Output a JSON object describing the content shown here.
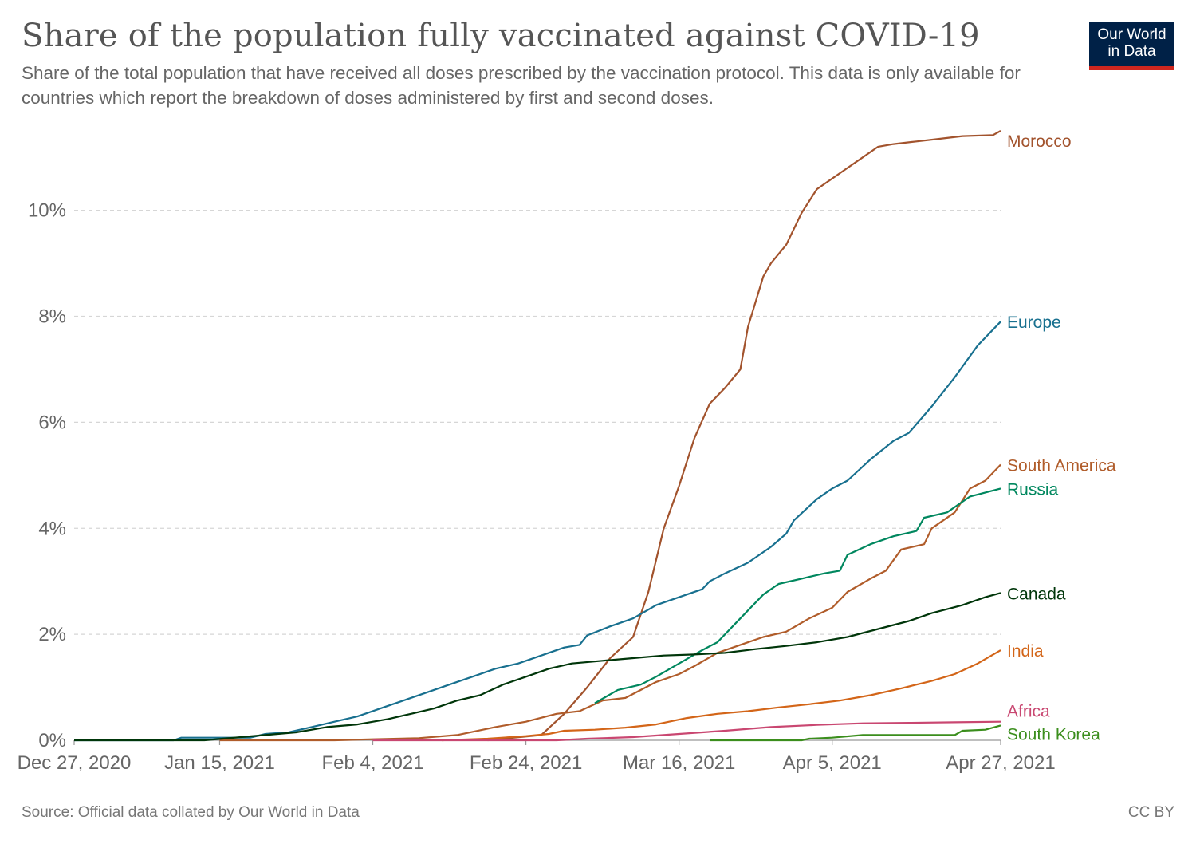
{
  "brand": {
    "line1": "Our World",
    "line2": "in Data",
    "bg_color": "#002147",
    "accent_color": "#ce261e"
  },
  "footer": {
    "source": "Source: Official data collated by Our World in Data",
    "license": "CC BY"
  },
  "chart_data": {
    "type": "line",
    "title": "Share of the population fully vaccinated against COVID-19",
    "subtitle": "Share of the total population that have received all doses prescribed by the vaccination protocol. This data is only available for countries which report the breakdown of doses administered by first and second doses.",
    "xlabel": "",
    "ylabel": "",
    "x_range": [
      "2020-12-27",
      "2021-04-27"
    ],
    "ylim": [
      0,
      11.5
    ],
    "y_unit": "%",
    "y_ticks": [
      0,
      2,
      4,
      6,
      8,
      10
    ],
    "y_tick_labels": [
      "0%",
      "2%",
      "4%",
      "6%",
      "8%",
      "10%"
    ],
    "x_ticks": [
      "2020-12-27",
      "2021-01-15",
      "2021-02-04",
      "2021-02-24",
      "2021-03-16",
      "2021-04-05",
      "2021-04-27"
    ],
    "x_tick_labels": [
      "Dec 27, 2020",
      "Jan 15, 2021",
      "Feb 4, 2021",
      "Feb 24, 2021",
      "Mar 16, 2021",
      "Apr 5, 2021",
      "Apr 27, 2021"
    ],
    "grid": "horizontal dashed",
    "legend": "inline labels at line ends (right)",
    "series": [
      {
        "name": "Morocco",
        "color": "#a2532d",
        "points": [
          [
            "2021-02-19",
            0.0
          ],
          [
            "2021-02-26",
            0.1
          ],
          [
            "2021-03-01",
            0.5
          ],
          [
            "2021-03-04",
            1.0
          ],
          [
            "2021-03-07",
            1.55
          ],
          [
            "2021-03-10",
            1.95
          ],
          [
            "2021-03-12",
            2.8
          ],
          [
            "2021-03-14",
            4.0
          ],
          [
            "2021-03-16",
            4.8
          ],
          [
            "2021-03-18",
            5.7
          ],
          [
            "2021-03-20",
            6.35
          ],
          [
            "2021-03-22",
            6.65
          ],
          [
            "2021-03-24",
            7.0
          ],
          [
            "2021-03-25",
            7.8
          ],
          [
            "2021-03-27",
            8.75
          ],
          [
            "2021-03-28",
            9.0
          ],
          [
            "2021-03-30",
            9.35
          ],
          [
            "2021-04-01",
            9.95
          ],
          [
            "2021-04-03",
            10.4
          ],
          [
            "2021-04-05",
            10.6
          ],
          [
            "2021-04-07",
            10.8
          ],
          [
            "2021-04-09",
            11.0
          ],
          [
            "2021-04-11",
            11.2
          ],
          [
            "2021-04-13",
            11.25
          ],
          [
            "2021-04-16",
            11.3
          ],
          [
            "2021-04-19",
            11.35
          ],
          [
            "2021-04-22",
            11.4
          ],
          [
            "2021-04-26",
            11.42
          ],
          [
            "2021-04-27",
            11.5
          ]
        ]
      },
      {
        "name": "Europe",
        "color": "#18708f",
        "points": [
          [
            "2020-12-27",
            0.0
          ],
          [
            "2021-01-09",
            0.0
          ],
          [
            "2021-01-10",
            0.05
          ],
          [
            "2021-01-19",
            0.05
          ],
          [
            "2021-01-21",
            0.12
          ],
          [
            "2021-01-24",
            0.15
          ],
          [
            "2021-01-27",
            0.25
          ],
          [
            "2021-01-30",
            0.35
          ],
          [
            "2021-02-02",
            0.45
          ],
          [
            "2021-02-05",
            0.6
          ],
          [
            "2021-02-08",
            0.75
          ],
          [
            "2021-02-11",
            0.9
          ],
          [
            "2021-02-14",
            1.05
          ],
          [
            "2021-02-17",
            1.2
          ],
          [
            "2021-02-20",
            1.35
          ],
          [
            "2021-02-23",
            1.45
          ],
          [
            "2021-02-26",
            1.6
          ],
          [
            "2021-03-01",
            1.75
          ],
          [
            "2021-03-03",
            1.8
          ],
          [
            "2021-03-04",
            1.98
          ],
          [
            "2021-03-07",
            2.15
          ],
          [
            "2021-03-10",
            2.3
          ],
          [
            "2021-03-13",
            2.55
          ],
          [
            "2021-03-16",
            2.7
          ],
          [
            "2021-03-19",
            2.85
          ],
          [
            "2021-03-20",
            3.0
          ],
          [
            "2021-03-22",
            3.15
          ],
          [
            "2021-03-25",
            3.35
          ],
          [
            "2021-03-28",
            3.65
          ],
          [
            "2021-03-30",
            3.9
          ],
          [
            "2021-03-31",
            4.15
          ],
          [
            "2021-04-03",
            4.55
          ],
          [
            "2021-04-05",
            4.75
          ],
          [
            "2021-04-07",
            4.9
          ],
          [
            "2021-04-10",
            5.3
          ],
          [
            "2021-04-13",
            5.65
          ],
          [
            "2021-04-15",
            5.8
          ],
          [
            "2021-04-18",
            6.3
          ],
          [
            "2021-04-21",
            6.85
          ],
          [
            "2021-04-24",
            7.45
          ],
          [
            "2021-04-27",
            7.9
          ]
        ]
      },
      {
        "name": "South America",
        "color": "#b05c2a",
        "points": [
          [
            "2021-01-15",
            0.0
          ],
          [
            "2021-01-30",
            0.0
          ],
          [
            "2021-02-04",
            0.02
          ],
          [
            "2021-02-10",
            0.04
          ],
          [
            "2021-02-15",
            0.1
          ],
          [
            "2021-02-20",
            0.25
          ],
          [
            "2021-02-24",
            0.35
          ],
          [
            "2021-02-28",
            0.5
          ],
          [
            "2021-03-03",
            0.55
          ],
          [
            "2021-03-06",
            0.75
          ],
          [
            "2021-03-09",
            0.8
          ],
          [
            "2021-03-13",
            1.1
          ],
          [
            "2021-03-16",
            1.25
          ],
          [
            "2021-03-18",
            1.4
          ],
          [
            "2021-03-21",
            1.65
          ],
          [
            "2021-03-24",
            1.8
          ],
          [
            "2021-03-27",
            1.95
          ],
          [
            "2021-03-30",
            2.05
          ],
          [
            "2021-04-02",
            2.3
          ],
          [
            "2021-04-05",
            2.5
          ],
          [
            "2021-04-07",
            2.8
          ],
          [
            "2021-04-10",
            3.05
          ],
          [
            "2021-04-12",
            3.2
          ],
          [
            "2021-04-14",
            3.6
          ],
          [
            "2021-04-17",
            3.7
          ],
          [
            "2021-04-18",
            4.0
          ],
          [
            "2021-04-21",
            4.3
          ],
          [
            "2021-04-23",
            4.75
          ],
          [
            "2021-04-25",
            4.9
          ],
          [
            "2021-04-27",
            5.2
          ]
        ]
      },
      {
        "name": "Russia",
        "color": "#00875e",
        "points": [
          [
            "2021-03-05",
            0.7
          ],
          [
            "2021-03-08",
            0.95
          ],
          [
            "2021-03-11",
            1.05
          ],
          [
            "2021-03-13",
            1.2
          ],
          [
            "2021-03-16",
            1.45
          ],
          [
            "2021-03-19",
            1.7
          ],
          [
            "2021-03-21",
            1.85
          ],
          [
            "2021-03-24",
            2.3
          ],
          [
            "2021-03-27",
            2.75
          ],
          [
            "2021-03-29",
            2.95
          ],
          [
            "2021-04-01",
            3.05
          ],
          [
            "2021-04-04",
            3.15
          ],
          [
            "2021-04-06",
            3.2
          ],
          [
            "2021-04-07",
            3.5
          ],
          [
            "2021-04-10",
            3.7
          ],
          [
            "2021-04-13",
            3.85
          ],
          [
            "2021-04-16",
            3.95
          ],
          [
            "2021-04-17",
            4.2
          ],
          [
            "2021-04-20",
            4.3
          ],
          [
            "2021-04-23",
            4.6
          ],
          [
            "2021-04-27",
            4.75
          ]
        ]
      },
      {
        "name": "Canada",
        "color": "#00360a",
        "points": [
          [
            "2020-12-27",
            0.0
          ],
          [
            "2021-01-13",
            0.0
          ],
          [
            "2021-01-25",
            0.15
          ],
          [
            "2021-01-29",
            0.25
          ],
          [
            "2021-02-02",
            0.3
          ],
          [
            "2021-02-06",
            0.4
          ],
          [
            "2021-02-09",
            0.5
          ],
          [
            "2021-02-12",
            0.6
          ],
          [
            "2021-02-15",
            0.75
          ],
          [
            "2021-02-18",
            0.85
          ],
          [
            "2021-02-21",
            1.05
          ],
          [
            "2021-02-24",
            1.2
          ],
          [
            "2021-02-27",
            1.35
          ],
          [
            "2021-03-02",
            1.45
          ],
          [
            "2021-03-06",
            1.5
          ],
          [
            "2021-03-10",
            1.55
          ],
          [
            "2021-03-14",
            1.6
          ],
          [
            "2021-03-18",
            1.62
          ],
          [
            "2021-03-22",
            1.65
          ],
          [
            "2021-03-26",
            1.72
          ],
          [
            "2021-03-30",
            1.78
          ],
          [
            "2021-04-03",
            1.85
          ],
          [
            "2021-04-07",
            1.95
          ],
          [
            "2021-04-11",
            2.1
          ],
          [
            "2021-04-15",
            2.25
          ],
          [
            "2021-04-18",
            2.4
          ],
          [
            "2021-04-22",
            2.55
          ],
          [
            "2021-04-25",
            2.7
          ],
          [
            "2021-04-27",
            2.78
          ]
        ]
      },
      {
        "name": "India",
        "color": "#d36518",
        "points": [
          [
            "2021-02-13",
            0.0
          ],
          [
            "2021-02-19",
            0.03
          ],
          [
            "2021-02-24",
            0.08
          ],
          [
            "2021-02-27",
            0.12
          ],
          [
            "2021-03-01",
            0.18
          ],
          [
            "2021-03-05",
            0.2
          ],
          [
            "2021-03-09",
            0.24
          ],
          [
            "2021-03-13",
            0.3
          ],
          [
            "2021-03-17",
            0.42
          ],
          [
            "2021-03-21",
            0.5
          ],
          [
            "2021-03-25",
            0.55
          ],
          [
            "2021-03-29",
            0.62
          ],
          [
            "2021-04-02",
            0.68
          ],
          [
            "2021-04-06",
            0.75
          ],
          [
            "2021-04-10",
            0.85
          ],
          [
            "2021-04-14",
            0.98
          ],
          [
            "2021-04-18",
            1.12
          ],
          [
            "2021-04-21",
            1.25
          ],
          [
            "2021-04-24",
            1.45
          ],
          [
            "2021-04-27",
            1.7
          ]
        ]
      },
      {
        "name": "Africa",
        "color": "#c94771",
        "points": [
          [
            "2021-02-04",
            0.0
          ],
          [
            "2021-02-28",
            0.0
          ],
          [
            "2021-03-04",
            0.03
          ],
          [
            "2021-03-10",
            0.06
          ],
          [
            "2021-03-16",
            0.12
          ],
          [
            "2021-03-22",
            0.18
          ],
          [
            "2021-03-28",
            0.25
          ],
          [
            "2021-04-03",
            0.29
          ],
          [
            "2021-04-09",
            0.32
          ],
          [
            "2021-04-15",
            0.33
          ],
          [
            "2021-04-21",
            0.34
          ],
          [
            "2021-04-27",
            0.35
          ]
        ]
      },
      {
        "name": "South Korea",
        "color": "#3b8e1d",
        "points": [
          [
            "2021-03-20",
            0.0
          ],
          [
            "2021-04-01",
            0.0
          ],
          [
            "2021-04-02",
            0.03
          ],
          [
            "2021-04-05",
            0.05
          ],
          [
            "2021-04-09",
            0.1
          ],
          [
            "2021-04-21",
            0.1
          ],
          [
            "2021-04-22",
            0.18
          ],
          [
            "2021-04-25",
            0.2
          ],
          [
            "2021-04-27",
            0.28
          ]
        ]
      }
    ]
  }
}
